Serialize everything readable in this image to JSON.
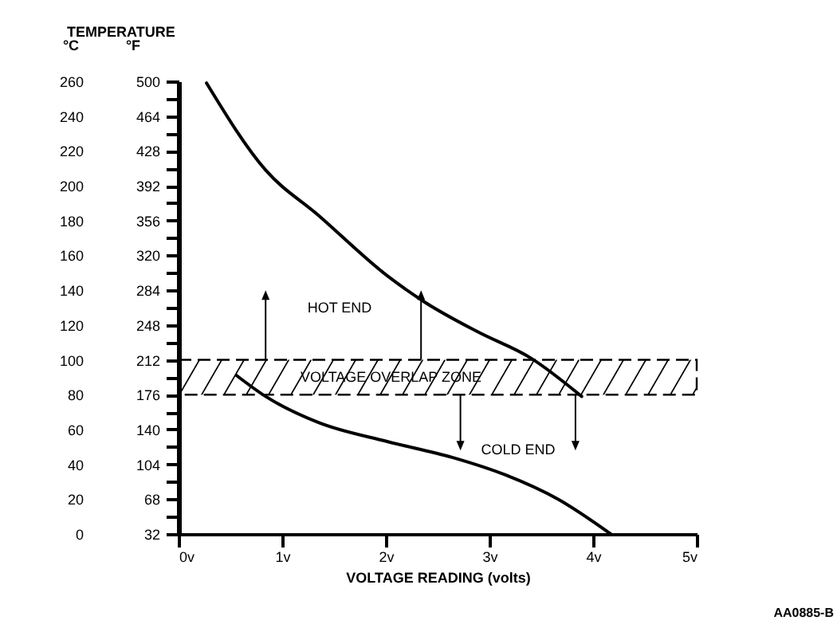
{
  "chart_data": {
    "type": "line",
    "title": "TEMPERATURE",
    "xlabel": "VOLTAGE READING (volts)",
    "ylabel": "°C",
    "y2label": "°F",
    "xlim": [
      0,
      5
    ],
    "xticks": [
      {
        "value": 0,
        "label": "0v"
      },
      {
        "value": 1,
        "label": "1v"
      },
      {
        "value": 2,
        "label": "2v"
      },
      {
        "value": 3,
        "label": "3v"
      },
      {
        "value": 4,
        "label": "4v"
      },
      {
        "value": 5,
        "label": "5v"
      }
    ],
    "ylim": [
      0,
      260
    ],
    "yticks": [
      0,
      {
        "value": 10,
        "label": null
      },
      20,
      {
        "value": 30,
        "label": null
      },
      40,
      {
        "value": 50,
        "label": null
      },
      60,
      {
        "value": 70,
        "label": null
      },
      80,
      {
        "value": 90,
        "label": null
      },
      100,
      {
        "value": 110,
        "label": null
      },
      120,
      {
        "value": 130,
        "label": null
      },
      140,
      {
        "value": 150,
        "label": null
      },
      160,
      {
        "value": 170,
        "label": null
      },
      180,
      {
        "value": 190,
        "label": null
      },
      200,
      {
        "value": 210,
        "label": null
      },
      220,
      {
        "value": 230,
        "label": null
      },
      240,
      {
        "value": 250,
        "label": null
      },
      260
    ],
    "y2lim": [
      32,
      500
    ],
    "y2ticks": [
      32,
      68,
      104,
      140,
      176,
      212,
      248,
      284,
      320,
      356,
      392,
      428,
      464,
      500
    ],
    "series": [
      {
        "color": "#000000",
        "x": [
          0.27,
          0.84,
          1.35,
          2.02,
          2.38,
          2.89,
          3.4,
          3.89
        ],
        "values": [
          259,
          209,
          183,
          148,
          133,
          116,
          101,
          79
        ]
      },
      {
        "color": "#000000",
        "x": [
          0.56,
          0.84,
          1.35,
          2.02,
          2.64,
          3.15,
          3.66,
          4.17
        ],
        "values": [
          91,
          79,
          64,
          53,
          44,
          34,
          20,
          0
        ]
      }
    ],
    "bands": [
      {
        "axis": "y",
        "from": 80,
        "to": 100,
        "label": "VOLTAGE OVERLAP ZONE",
        "color": "#000000"
      }
    ],
    "annotations": [
      "HOT END",
      "COLD END",
      "AA0885-B"
    ],
    "legend": false,
    "grid": false,
    "marker": "none",
    "line_style": "solid"
  }
}
